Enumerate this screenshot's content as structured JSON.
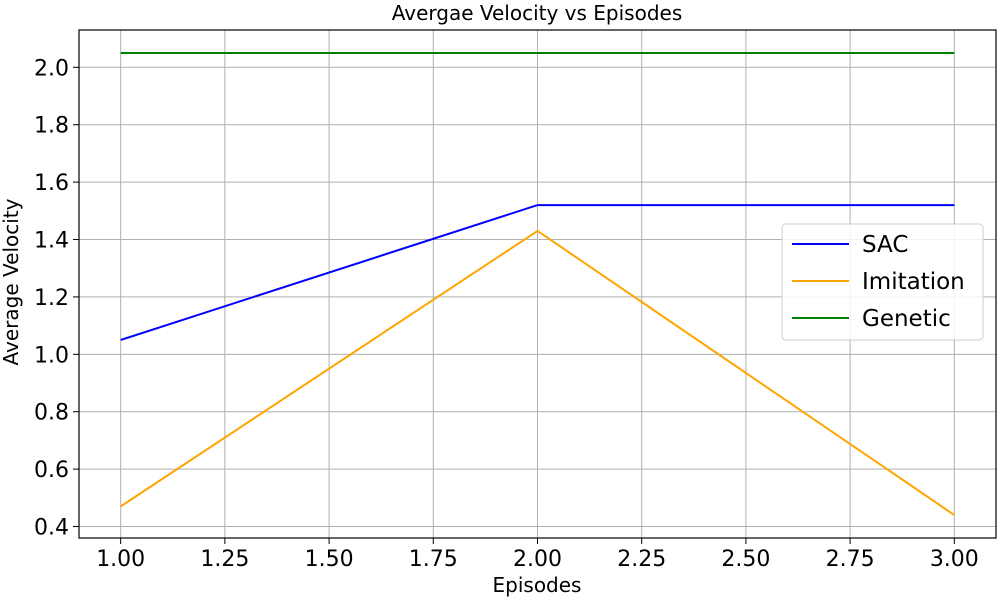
{
  "chart_data": {
    "type": "line",
    "title": "Avergae Velocity vs Episodes",
    "xlabel": "Episodes",
    "ylabel": "Average Velocity",
    "x": [
      1,
      2,
      3
    ],
    "xlim": [
      0.9,
      3.1
    ],
    "ylim": [
      0.36,
      2.13
    ],
    "xticks": [
      1.0,
      1.25,
      1.5,
      1.75,
      2.0,
      2.25,
      2.5,
      2.75,
      3.0
    ],
    "xtick_labels": [
      "1.00",
      "1.25",
      "1.50",
      "1.75",
      "2.00",
      "2.25",
      "2.50",
      "2.75",
      "3.00"
    ],
    "yticks": [
      0.4,
      0.6,
      0.8,
      1.0,
      1.2,
      1.4,
      1.6,
      1.8,
      2.0
    ],
    "ytick_labels": [
      "0.4",
      "0.6",
      "0.8",
      "1.0",
      "1.2",
      "1.4",
      "1.6",
      "1.8",
      "2.0"
    ],
    "grid": true,
    "legend_position": "center-right",
    "series": [
      {
        "name": "SAC",
        "color": "#0000ff",
        "values": [
          1.05,
          1.52,
          1.52
        ]
      },
      {
        "name": "Imitation",
        "color": "#ffa500",
        "values": [
          0.47,
          1.43,
          0.44
        ]
      },
      {
        "name": "Genetic",
        "color": "#008000",
        "values": [
          2.05,
          2.05,
          2.05
        ]
      }
    ]
  }
}
